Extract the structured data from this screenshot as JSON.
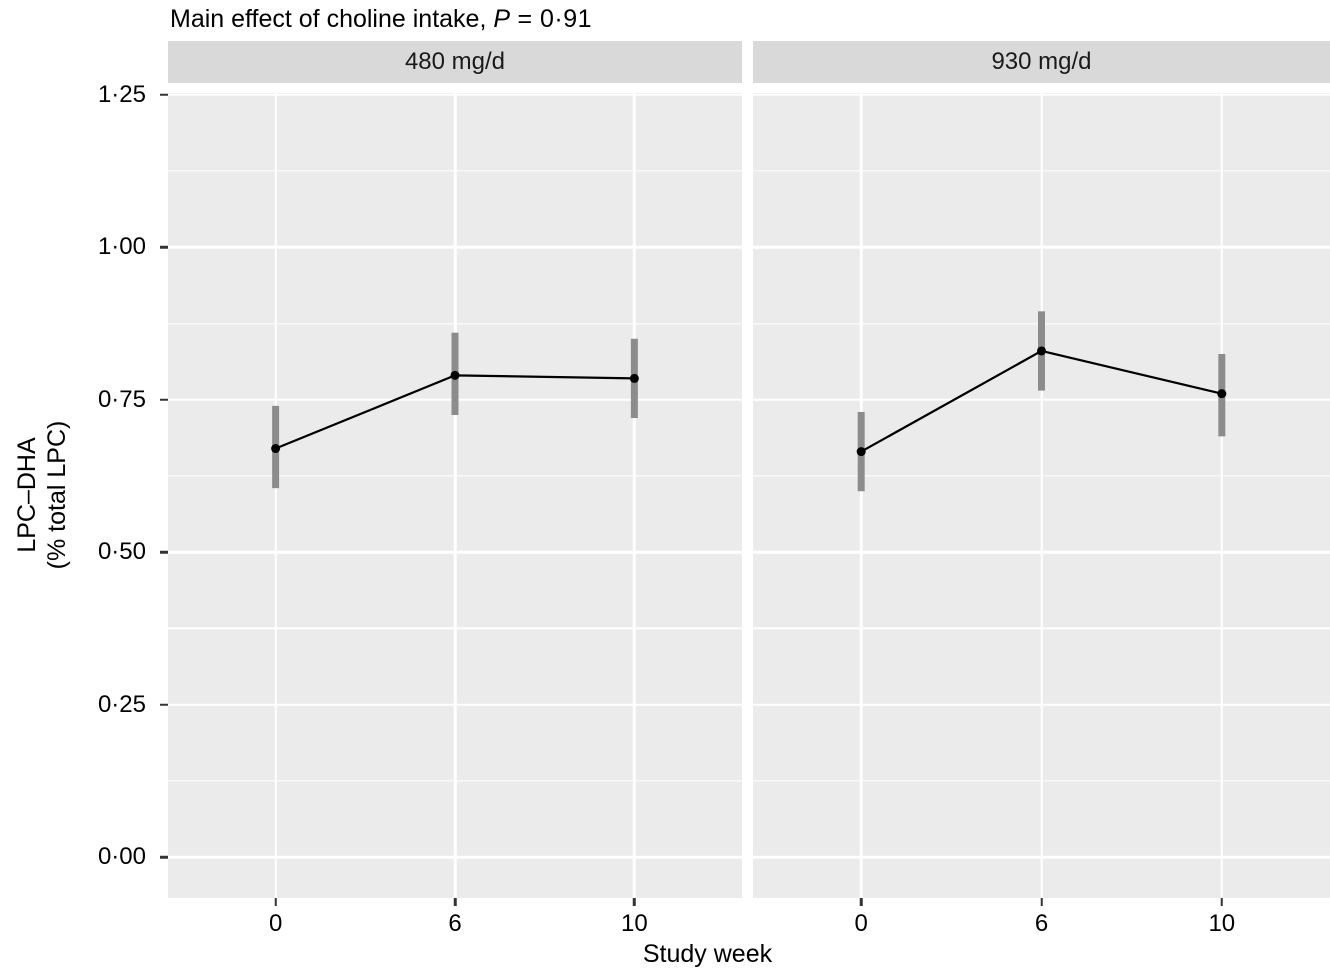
{
  "title": {
    "prefix": "Main effect of choline intake, ",
    "stat_symbol": "P",
    "stat_rest": " = 0·91"
  },
  "y_axis": {
    "title_line1": "LPC–DHA",
    "title_line2": "(% total LPC)",
    "tick_labels": [
      "1·25",
      "1·00",
      "0·75",
      "0·50",
      "0·25",
      "0·00"
    ],
    "tick_values": [
      1.25,
      1.0,
      0.75,
      0.5,
      0.25,
      0.0
    ]
  },
  "x_axis": {
    "title": "Study week",
    "tick_labels": [
      "0",
      "6",
      "10"
    ]
  },
  "chart_data": {
    "type": "line",
    "description": "Two-facet point-and-line plot with vertical grey error bars (no caps), ggplot grey theme",
    "facet_variable": "choline intake dose",
    "categories": [
      0,
      6,
      10
    ],
    "facets": [
      {
        "label": "480 mg/d",
        "x": [
          0,
          6,
          10
        ],
        "means": [
          0.67,
          0.79,
          0.785
        ],
        "ci_low": [
          0.605,
          0.725,
          0.72
        ],
        "ci_high": [
          0.74,
          0.86,
          0.85
        ]
      },
      {
        "label": "930 mg/d",
        "x": [
          0,
          6,
          10
        ],
        "means": [
          0.665,
          0.83,
          0.76
        ],
        "ci_low": [
          0.6,
          0.765,
          0.69
        ],
        "ci_high": [
          0.73,
          0.895,
          0.825
        ]
      }
    ],
    "ylim": [
      -0.067,
      1.253
    ],
    "y_major": [
      0.0,
      0.25,
      0.5,
      0.75,
      1.0,
      1.25
    ],
    "y_minor": [
      0.125,
      0.375,
      0.625,
      0.875,
      1.125
    ],
    "x_positions_pct": [
      18.75,
      50,
      81.25
    ],
    "grid": "white major and minor horizontal lines, white vertical lines at categories",
    "legend": "none"
  },
  "colors": {
    "panel_bg": "#EBEBEB",
    "strip_bg": "#D9D9D9",
    "grid": "#FFFFFF",
    "point": "#000000",
    "line": "#000000",
    "ci_bar": "#8C8C8C",
    "tick": "#333333",
    "text": "#000000"
  }
}
